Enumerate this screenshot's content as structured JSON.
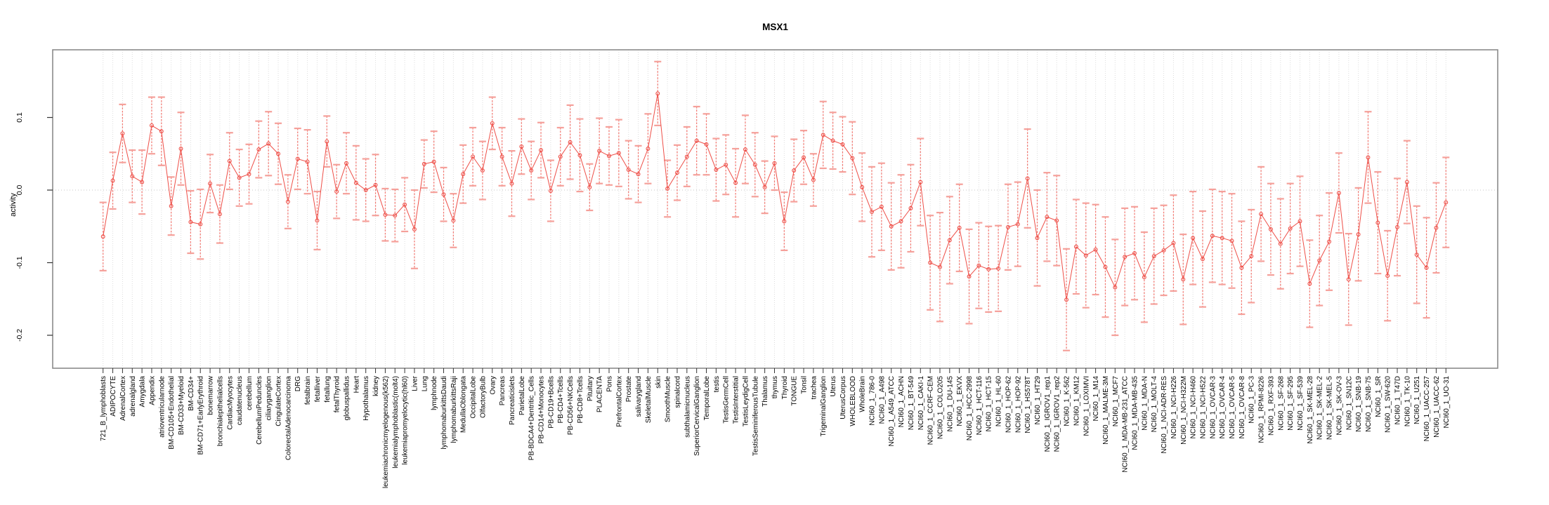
{
  "chart": {
    "title": "MSX1",
    "ylabel": "activity"
  },
  "colors": {
    "series": "#ee4e47",
    "error_bar_line": "#f3756e",
    "error_bar_cap": "#f5a09a",
    "grid_line": "#dcdcdc",
    "zero_line": "#c4c4c4",
    "panel_border": "#8a8a8a",
    "tick": "#333333",
    "text": "#000000",
    "background": "#ffffff"
  },
  "chart_data": {
    "type": "scatter",
    "subtype": "points-with-error-bars-connected-line",
    "title": "MSX1",
    "xlabel": "",
    "ylabel": "activity",
    "ylim": [
      -0.245,
      0.193
    ],
    "y_ticks": [
      0.1,
      0.0,
      -0.1,
      -0.2
    ],
    "zero_line": true,
    "grid": "vertical-dotted-per-category",
    "legend": "none",
    "point_style": "open-circle",
    "categories": [
      "721_B_lymphoblasts",
      "ADIPOCYTE",
      "AdrenalCortex",
      "adrenalgland",
      "Amygdala",
      "Appendix",
      "atrioventricularnode",
      "BM-CD105+Endothelial",
      "BM-CD33+Myeloid",
      "BM-CD34+",
      "BM-CD71+EarlyErythroid",
      "bonemarrow",
      "bronchialepithelialcells",
      "CardiacMyocytes",
      "caudatenucleus",
      "cerebellum",
      "CerebellumPeduncles",
      "ciliaryganglion",
      "CingulateCortex",
      "ColorectalAdenocarcinoma",
      "DRG",
      "fetalbrain",
      "fetalliver",
      "fetallung",
      "fetalThyroid",
      "globuspallidus",
      "Heart",
      "Hypothalamus",
      "kidney",
      "leukemiachronicmyelogenous(k562)",
      "leukemialymphoblastic(molt4)",
      "leukemiapromyelocytic(hl60)",
      "Liver",
      "Lung",
      "lymphnode",
      "lymphomaburkittsDaudi",
      "lymphomaburkittsRaji",
      "MedullaOblongata",
      "OccipitalLobe",
      "OlfactoryBulb",
      "Ovary",
      "Pancreas",
      "Pancreaticislets",
      "ParietalLobe",
      "PB-BDCA4+Dentritic_Cells",
      "PB-CD14+Monocytes",
      "PB-CD19+Bcells",
      "PB-CD4+Tcells",
      "PB-CD56+NKCells",
      "PB-CD8+Tcells",
      "Pituitary",
      "PLACENTA",
      "Pons",
      "PrefrontalCortex",
      "Prostate",
      "salivarygland",
      "SkeletalMuscle",
      "skin",
      "SmoothMuscle",
      "spinalcord",
      "subthalamicnucleus",
      "SuperiorCervicalGanglion",
      "TemporalLobe",
      "testis",
      "TestisGermCell",
      "TestisInterstitial",
      "TestisLeydigCell",
      "TestisSeminiferousTubule",
      "Thalamus",
      "thymus",
      "Thyroid",
      "TONGUE",
      "Tonsil",
      "trachea",
      "TrigeminalGanglion",
      "Uterus",
      "UterusCorpus",
      "WHOLEBLOOD",
      "WholeBrain",
      "NCI60_1_786-0",
      "NCI60_1_A498",
      "NCI60_1_A549_ATCC",
      "NCI60_1_ACHN",
      "NCI60_1_BT-549",
      "NCI60_1_CAKI-1",
      "NCI60_1_CCRF-CEM",
      "NCI60_1_COLO205",
      "NCI60_1_DU-145",
      "NCI60_1_EKVX",
      "NCI60_1_HCC-2998",
      "NCI60_1_HCT-116",
      "NCI60_1_HCT-15",
      "NCI60_1_HL-60",
      "NCI60_1_HOP-62",
      "NCI60_1_HOP-92",
      "NCI60_1_HS578T",
      "NCI60_1_HT29",
      "NCI60_1_IGROV1_rep1",
      "NCI60_1_IGROV1_rep2",
      "NCI60_1_K-562",
      "NCI60_1_KM12",
      "NCI60_1_LOXIMVI",
      "NCI60_1_M14",
      "NCI60_1_MALME-3M",
      "NCI60_1_MCF7",
      "NCI60_1_MDA-MB-231_ATCC",
      "NCI60_1_MDA-MB-435",
      "NCI60_1_MDA-N",
      "NCI60_1_MOLT-4",
      "NCI60_1_NCI-ADR-RES",
      "NCI60_1_NCI-H226",
      "NCI60_1_NCI-H322M",
      "NCI60_1_NCI-H460",
      "NCI60_1_NCI-H522",
      "NCI60_1_OVCAR-3",
      "NCI60_1_OVCAR-4",
      "NCI60_1_OVCAR-5",
      "NCI60_1_OVCAR-8",
      "NCI60_1_PC-3",
      "NCI60_1_RPMI-8226",
      "NCI60_1_RXF-393",
      "NCI60_1_SF-268",
      "NCI60_1_SF-295",
      "NCI60_1_SF-539",
      "NCI60_1_SK-MEL-28",
      "NCI60_1_SK-MEL-2",
      "NCI60_1_SK-MEL-5",
      "NCI60_1_SK-OV-3",
      "NCI60_1_SN12C",
      "NCI60_1_SNB-19",
      "NCI60_1_SNB-75",
      "NCI60_1_SR",
      "NCI60_1_SW-620",
      "NCI60_1_T47D",
      "NCI60_1_TK-10",
      "NCI60_1_U251",
      "NCI60_1_UACC-257",
      "NCI60_1_UACC-62",
      "NCI60_1_UO-31"
    ],
    "values": [
      -0.064,
      0.013,
      0.078,
      0.019,
      0.011,
      0.089,
      0.081,
      -0.022,
      0.057,
      -0.044,
      -0.047,
      0.009,
      -0.033,
      0.04,
      0.017,
      0.022,
      0.056,
      0.064,
      0.05,
      -0.016,
      0.043,
      0.039,
      -0.042,
      0.067,
      -0.002,
      0.037,
      0.01,
      0.0,
      0.007,
      -0.034,
      -0.035,
      -0.02,
      -0.054,
      0.036,
      0.039,
      -0.006,
      -0.042,
      0.022,
      0.046,
      0.027,
      0.092,
      0.046,
      0.009,
      0.06,
      0.027,
      0.055,
      -0.001,
      0.046,
      0.066,
      0.048,
      0.004,
      0.054,
      0.047,
      0.051,
      0.028,
      0.022,
      0.057,
      0.133,
      0.002,
      0.024,
      0.046,
      0.068,
      0.063,
      0.028,
      0.035,
      0.01,
      0.056,
      0.035,
      0.004,
      0.037,
      -0.043,
      0.027,
      0.045,
      0.014,
      0.076,
      0.068,
      0.063,
      0.044,
      0.004,
      -0.03,
      -0.023,
      -0.05,
      -0.043,
      -0.025,
      0.011,
      -0.1,
      -0.106,
      -0.069,
      -0.052,
      -0.119,
      -0.104,
      -0.109,
      -0.108,
      -0.051,
      -0.047,
      0.016,
      -0.066,
      -0.037,
      -0.042,
      -0.151,
      -0.078,
      -0.09,
      -0.082,
      -0.106,
      -0.134,
      -0.092,
      -0.087,
      -0.12,
      -0.091,
      -0.083,
      -0.073,
      -0.123,
      -0.066,
      -0.095,
      -0.063,
      -0.066,
      -0.07,
      -0.107,
      -0.091,
      -0.033,
      -0.054,
      -0.074,
      -0.053,
      -0.043,
      -0.129,
      -0.097,
      -0.071,
      -0.004,
      -0.123,
      -0.061,
      0.045,
      -0.045,
      -0.118,
      -0.051,
      0.011,
      -0.089,
      -0.107,
      -0.052,
      -0.017
    ],
    "errors": [
      0.047,
      0.039,
      0.04,
      0.036,
      0.044,
      0.039,
      0.047,
      0.04,
      0.05,
      0.043,
      0.048,
      0.04,
      0.04,
      0.039,
      0.039,
      0.041,
      0.039,
      0.044,
      0.042,
      0.037,
      0.042,
      0.044,
      0.04,
      0.035,
      0.037,
      0.042,
      0.051,
      0.043,
      0.042,
      0.036,
      0.036,
      0.037,
      0.054,
      0.033,
      0.042,
      0.037,
      0.037,
      0.04,
      0.04,
      0.04,
      0.036,
      0.04,
      0.045,
      0.038,
      0.04,
      0.038,
      0.042,
      0.04,
      0.051,
      0.05,
      0.032,
      0.045,
      0.04,
      0.046,
      0.04,
      0.039,
      0.048,
      0.044,
      0.039,
      0.038,
      0.041,
      0.047,
      0.042,
      0.043,
      0.041,
      0.047,
      0.047,
      0.044,
      0.036,
      0.037,
      0.04,
      0.043,
      0.037,
      0.036,
      0.046,
      0.039,
      0.038,
      0.05,
      0.047,
      0.062,
      0.06,
      0.06,
      0.064,
      0.06,
      0.06,
      0.065,
      0.075,
      0.06,
      0.06,
      0.065,
      0.059,
      0.059,
      0.059,
      0.059,
      0.058,
      0.068,
      0.066,
      0.061,
      0.062,
      0.07,
      0.065,
      0.072,
      0.062,
      0.069,
      0.066,
      0.067,
      0.064,
      0.062,
      0.066,
      0.062,
      0.066,
      0.062,
      0.064,
      0.066,
      0.064,
      0.064,
      0.065,
      0.064,
      0.064,
      0.065,
      0.063,
      0.062,
      0.062,
      0.062,
      0.06,
      0.062,
      0.067,
      0.055,
      0.063,
      0.064,
      0.063,
      0.07,
      0.062,
      0.067,
      0.057,
      0.067,
      0.069,
      0.062,
      0.062
    ]
  }
}
